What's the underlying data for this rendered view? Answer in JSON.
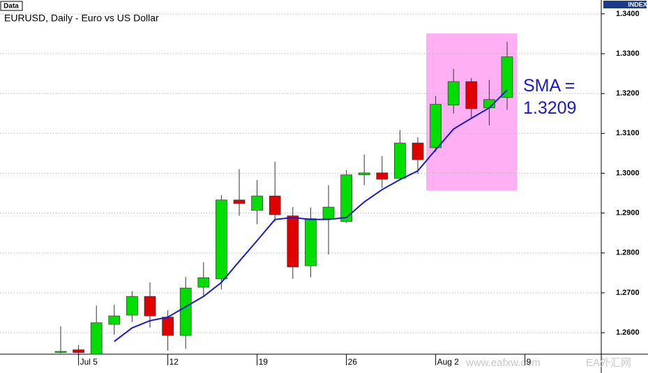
{
  "chart_data": {
    "type": "candlestick",
    "panel_label": "Data",
    "axis_label": "INDEX",
    "title": "EURUSD, Daily - Euro vs US Dollar",
    "annotation": "SMA = 1.3209",
    "watermark": [
      "www.eafxw.com",
      "EA外汇网"
    ],
    "categories": [
      null,
      "Jul 5",
      null,
      null,
      null,
      null,
      "12",
      null,
      null,
      null,
      null,
      "19",
      null,
      null,
      null,
      null,
      "26",
      null,
      null,
      null,
      null,
      "Aug 2",
      null,
      null,
      null,
      null,
      "9"
    ],
    "open": [
      1.2551,
      1.2557,
      1.2546,
      1.2621,
      1.2644,
      1.2691,
      1.2639,
      1.2593,
      1.2714,
      1.2735,
      1.2933,
      1.2907,
      1.2943,
      1.2893,
      1.2768,
      1.2886,
      1.2879,
      1.2996,
      1.3001,
      1.2987,
      1.3076,
      1.3064,
      1.3171,
      1.323,
      1.3164,
      1.319,
      null
    ],
    "high": [
      1.2616,
      1.2569,
      1.2668,
      1.267,
      1.2704,
      1.2726,
      1.2656,
      1.274,
      1.2777,
      1.2945,
      1.301,
      1.2983,
      1.3029,
      1.2915,
      1.2914,
      1.297,
      1.3008,
      1.3047,
      1.3043,
      1.3108,
      1.309,
      1.3194,
      1.3262,
      1.3239,
      1.3234,
      1.333,
      null
    ],
    "low": [
      1.2548,
      1.2546,
      1.2546,
      1.2595,
      1.2627,
      1.2613,
      1.2555,
      1.256,
      1.2691,
      1.2709,
      1.2893,
      1.2872,
      1.2879,
      1.2735,
      1.2739,
      1.2796,
      1.2875,
      1.297,
      1.2963,
      1.2984,
      1.2998,
      1.3054,
      1.315,
      1.3138,
      1.312,
      1.3159,
      null
    ],
    "close": [
      1.2553,
      1.255,
      1.2625,
      1.2642,
      1.2691,
      1.2642,
      1.2593,
      1.2712,
      1.2738,
      1.2933,
      1.2924,
      1.2943,
      1.2896,
      1.2765,
      1.2886,
      1.2915,
      1.2996,
      1.3001,
      1.2985,
      1.3076,
      1.3034,
      1.3173,
      1.323,
      1.3162,
      1.3185,
      1.3292,
      null
    ],
    "up_color": "#00dd00",
    "down_color": "#e00000",
    "sma": {
      "color": "#1a1acc",
      "values": [
        null,
        null,
        null,
        1.2578,
        1.2612,
        1.263,
        1.2639,
        1.2665,
        1.2691,
        1.2726,
        1.2779,
        1.2831,
        1.2884,
        1.2889,
        1.2884,
        1.2884,
        1.2889,
        1.2928,
        1.2959,
        1.2984,
        1.3006,
        1.3059,
        1.3111,
        1.3138,
        1.3164,
        1.3209,
        null
      ]
    },
    "ylim": [
      1.2546,
      1.3426
    ],
    "yticks": [
      {
        "value": 1.26,
        "label": "1.2600"
      },
      {
        "value": 1.27,
        "label": "1.2700"
      },
      {
        "value": 1.28,
        "label": "1.2800"
      },
      {
        "value": 1.29,
        "label": "1.2900"
      },
      {
        "value": 1.3,
        "label": "1.3000"
      },
      {
        "value": 1.31,
        "label": "1.3100"
      },
      {
        "value": 1.32,
        "label": "1.3200"
      },
      {
        "value": 1.33,
        "label": "1.3300"
      },
      {
        "value": 1.34,
        "label": "1.3400"
      }
    ],
    "grid": true
  }
}
